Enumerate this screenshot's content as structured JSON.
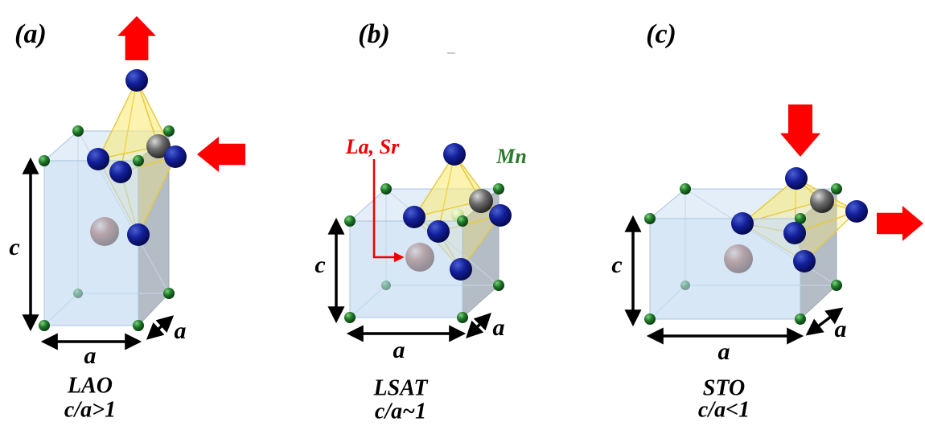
{
  "panels": [
    {
      "label": "(a)",
      "c_label": "c",
      "a_front": "a",
      "a_side": "a",
      "substrate": "LAO",
      "ratio": "c/a>1"
    },
    {
      "label": "(b)",
      "c_label": "c",
      "a_front": "a",
      "a_side": "a",
      "substrate": "LSAT",
      "ratio": "c/a~1"
    },
    {
      "label": "(c)",
      "c_label": "c",
      "a_front": "a",
      "a_side": "a",
      "substrate": "STO",
      "ratio": "c/a<1"
    }
  ],
  "annotations": {
    "a_site": "La, Sr",
    "b_site": "Mn"
  }
}
